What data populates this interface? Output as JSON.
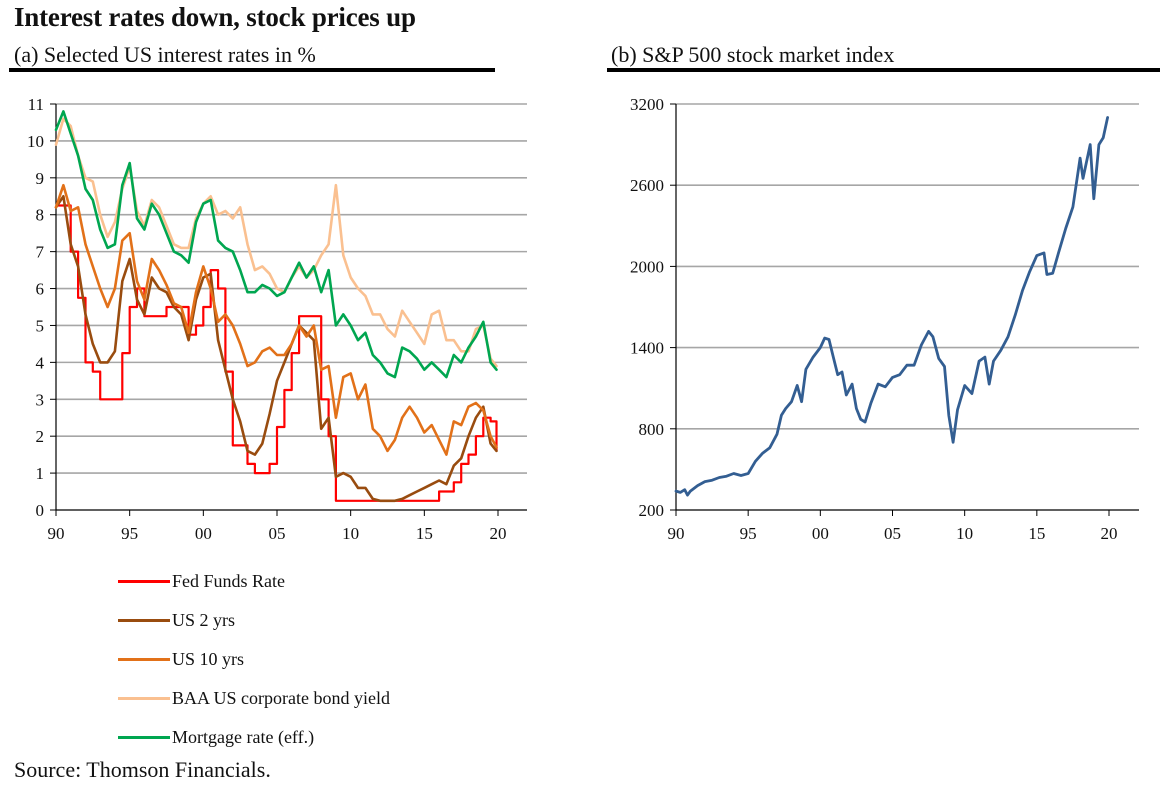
{
  "title": "Interest rates down, stock prices up",
  "source": "Source: Thomson Financials.",
  "chart_data": [
    {
      "type": "line",
      "title": "(a) Selected US interest rates in %",
      "xlabel": "",
      "ylabel": "",
      "x_ticks": [
        "90",
        "95",
        "00",
        "05",
        "10",
        "15",
        "20"
      ],
      "x_tick_values": [
        1990,
        1995,
        2000,
        2005,
        2010,
        2015,
        2020
      ],
      "y_ticks": [
        "0",
        "1",
        "2",
        "3",
        "4",
        "5",
        "6",
        "7",
        "8",
        "9",
        "10",
        "11"
      ],
      "y_tick_values": [
        0,
        1,
        2,
        3,
        4,
        5,
        6,
        7,
        8,
        9,
        10,
        11
      ],
      "xlim": [
        1990,
        2022
      ],
      "ylim": [
        0,
        11
      ],
      "grid": true,
      "legend_position": "bottom",
      "x": [
        1990.0,
        1990.5,
        1991.0,
        1991.5,
        1992.0,
        1992.5,
        1993.0,
        1993.5,
        1994.0,
        1994.5,
        1995.0,
        1995.5,
        1996.0,
        1996.5,
        1997.0,
        1997.5,
        1998.0,
        1998.5,
        1999.0,
        1999.5,
        2000.0,
        2000.5,
        2001.0,
        2001.5,
        2002.0,
        2002.5,
        2003.0,
        2003.5,
        2004.0,
        2004.5,
        2005.0,
        2005.5,
        2006.0,
        2006.5,
        2007.0,
        2007.5,
        2008.0,
        2008.5,
        2009.0,
        2009.5,
        2010.0,
        2010.5,
        2011.0,
        2011.5,
        2012.0,
        2012.5,
        2013.0,
        2013.5,
        2014.0,
        2014.5,
        2015.0,
        2015.5,
        2016.0,
        2016.5,
        2017.0,
        2017.5,
        2018.0,
        2018.5,
        2019.0,
        2019.5,
        2019.9
      ],
      "series": [
        {
          "name": "Fed Funds Rate",
          "color": "#ff0000",
          "values": [
            8.25,
            8.25,
            7.0,
            5.75,
            4.0,
            3.75,
            3.0,
            3.0,
            3.0,
            4.25,
            5.5,
            6.0,
            5.25,
            5.25,
            5.25,
            5.5,
            5.5,
            5.5,
            4.75,
            5.0,
            5.5,
            6.5,
            6.0,
            3.75,
            1.75,
            1.75,
            1.25,
            1.0,
            1.0,
            1.25,
            2.25,
            3.25,
            4.25,
            5.25,
            5.25,
            5.25,
            3.0,
            2.0,
            0.25,
            0.25,
            0.25,
            0.25,
            0.25,
            0.25,
            0.25,
            0.25,
            0.25,
            0.25,
            0.25,
            0.25,
            0.25,
            0.25,
            0.5,
            0.5,
            0.75,
            1.25,
            1.5,
            2.0,
            2.5,
            2.4,
            1.6
          ]
        },
        {
          "name": "US 2 yrs",
          "color": "#994c0f",
          "values": [
            8.2,
            8.5,
            7.2,
            6.6,
            5.3,
            4.5,
            4.0,
            4.0,
            4.3,
            6.2,
            6.8,
            5.7,
            5.3,
            6.3,
            6.0,
            5.9,
            5.5,
            5.3,
            4.6,
            5.7,
            6.3,
            6.4,
            4.6,
            3.8,
            3.0,
            2.4,
            1.6,
            1.5,
            1.8,
            2.6,
            3.5,
            4.0,
            4.5,
            5.0,
            4.8,
            4.6,
            2.2,
            2.5,
            0.9,
            1.0,
            0.9,
            0.6,
            0.6,
            0.3,
            0.25,
            0.25,
            0.25,
            0.3,
            0.4,
            0.5,
            0.6,
            0.7,
            0.8,
            0.7,
            1.2,
            1.4,
            2.0,
            2.5,
            2.8,
            1.8,
            1.6
          ]
        },
        {
          "name": "US 10 yrs",
          "color": "#e27119",
          "values": [
            8.2,
            8.8,
            8.1,
            8.2,
            7.2,
            6.6,
            6.0,
            5.5,
            6.0,
            7.3,
            7.5,
            6.2,
            5.7,
            6.8,
            6.5,
            6.1,
            5.6,
            5.5,
            4.8,
            5.9,
            6.6,
            6.0,
            5.1,
            5.3,
            5.0,
            4.5,
            3.9,
            4.0,
            4.3,
            4.4,
            4.2,
            4.2,
            4.5,
            5.0,
            4.7,
            5.0,
            3.8,
            3.9,
            2.5,
            3.6,
            3.7,
            3.0,
            3.4,
            2.2,
            2.0,
            1.6,
            1.9,
            2.5,
            2.8,
            2.5,
            2.1,
            2.3,
            1.9,
            1.5,
            2.4,
            2.3,
            2.8,
            2.9,
            2.7,
            2.0,
            1.7
          ]
        },
        {
          "name": "BAA US corporate bond yield",
          "color": "#fac090",
          "values": [
            9.9,
            10.6,
            10.4,
            9.6,
            9.0,
            8.9,
            8.0,
            7.4,
            7.8,
            8.7,
            9.3,
            8.1,
            7.7,
            8.4,
            8.2,
            7.7,
            7.2,
            7.1,
            7.1,
            7.9,
            8.3,
            8.5,
            8.0,
            8.1,
            7.9,
            8.2,
            7.2,
            6.5,
            6.6,
            6.4,
            6.0,
            5.9,
            6.3,
            6.6,
            6.3,
            6.5,
            6.9,
            7.2,
            8.8,
            6.9,
            6.3,
            6.0,
            5.8,
            5.3,
            5.3,
            4.9,
            4.7,
            5.4,
            5.1,
            4.8,
            4.5,
            5.3,
            5.4,
            4.6,
            4.6,
            4.3,
            4.3,
            4.9,
            5.0,
            4.1,
            3.9
          ]
        },
        {
          "name": "Mortgage rate (eff.)",
          "color": "#00a650",
          "values": [
            10.3,
            10.8,
            10.2,
            9.6,
            8.7,
            8.4,
            7.6,
            7.1,
            7.2,
            8.8,
            9.4,
            7.9,
            7.6,
            8.3,
            8.0,
            7.5,
            7.0,
            6.9,
            6.7,
            7.8,
            8.3,
            8.4,
            7.3,
            7.1,
            7.0,
            6.5,
            5.9,
            5.9,
            6.1,
            6.0,
            5.8,
            5.9,
            6.3,
            6.7,
            6.3,
            6.6,
            5.9,
            6.5,
            5.0,
            5.3,
            5.0,
            4.6,
            4.8,
            4.2,
            4.0,
            3.7,
            3.6,
            4.4,
            4.3,
            4.1,
            3.8,
            4.0,
            3.8,
            3.6,
            4.2,
            4.0,
            4.4,
            4.7,
            5.1,
            4.0,
            3.8
          ]
        }
      ]
    },
    {
      "type": "line",
      "title": "(b) S&P 500 stock market index",
      "xlabel": "",
      "ylabel": "",
      "x_ticks": [
        "90",
        "95",
        "00",
        "05",
        "10",
        "15",
        "20"
      ],
      "x_tick_values": [
        1990,
        1995,
        2000,
        2005,
        2010,
        2015,
        2020
      ],
      "y_ticks": [
        "200",
        "800",
        "1400",
        "2000",
        "2600",
        "3200"
      ],
      "y_tick_values": [
        200,
        800,
        1400,
        2000,
        2600,
        3200
      ],
      "xlim": [
        1990,
        2022
      ],
      "ylim": [
        200,
        3200
      ],
      "grid": true,
      "x": [
        1990.0,
        1990.3,
        1990.6,
        1990.8,
        1991.0,
        1991.5,
        1992.0,
        1992.5,
        1993.0,
        1993.5,
        1994.0,
        1994.5,
        1995.0,
        1995.5,
        1996.0,
        1996.5,
        1997.0,
        1997.3,
        1997.6,
        1998.0,
        1998.4,
        1998.7,
        1999.0,
        1999.5,
        2000.0,
        2000.3,
        2000.6,
        2000.9,
        2001.2,
        2001.5,
        2001.8,
        2002.2,
        2002.5,
        2002.8,
        2003.1,
        2003.5,
        2004.0,
        2004.5,
        2005.0,
        2005.5,
        2006.0,
        2006.5,
        2007.0,
        2007.5,
        2007.8,
        2008.2,
        2008.6,
        2008.9,
        2009.2,
        2009.5,
        2010.0,
        2010.5,
        2011.0,
        2011.4,
        2011.7,
        2012.0,
        2012.5,
        2013.0,
        2013.5,
        2014.0,
        2014.5,
        2015.0,
        2015.5,
        2015.7,
        2016.1,
        2016.5,
        2017.0,
        2017.5,
        2018.0,
        2018.2,
        2018.7,
        2018.95,
        2019.3,
        2019.6,
        2019.9
      ],
      "series": [
        {
          "name": "S&P 500",
          "color": "#335e92",
          "values": [
            340,
            330,
            350,
            310,
            340,
            380,
            410,
            420,
            440,
            450,
            470,
            455,
            470,
            560,
            620,
            660,
            760,
            900,
            950,
            1000,
            1120,
            1000,
            1240,
            1330,
            1400,
            1470,
            1460,
            1330,
            1200,
            1220,
            1050,
            1130,
            950,
            870,
            850,
            990,
            1130,
            1110,
            1180,
            1200,
            1270,
            1270,
            1420,
            1520,
            1480,
            1320,
            1260,
            900,
            700,
            940,
            1120,
            1060,
            1300,
            1330,
            1130,
            1300,
            1380,
            1480,
            1640,
            1820,
            1960,
            2080,
            2100,
            1940,
            1950,
            2100,
            2280,
            2440,
            2800,
            2650,
            2900,
            2500,
            2900,
            2950,
            3100
          ]
        }
      ]
    }
  ]
}
